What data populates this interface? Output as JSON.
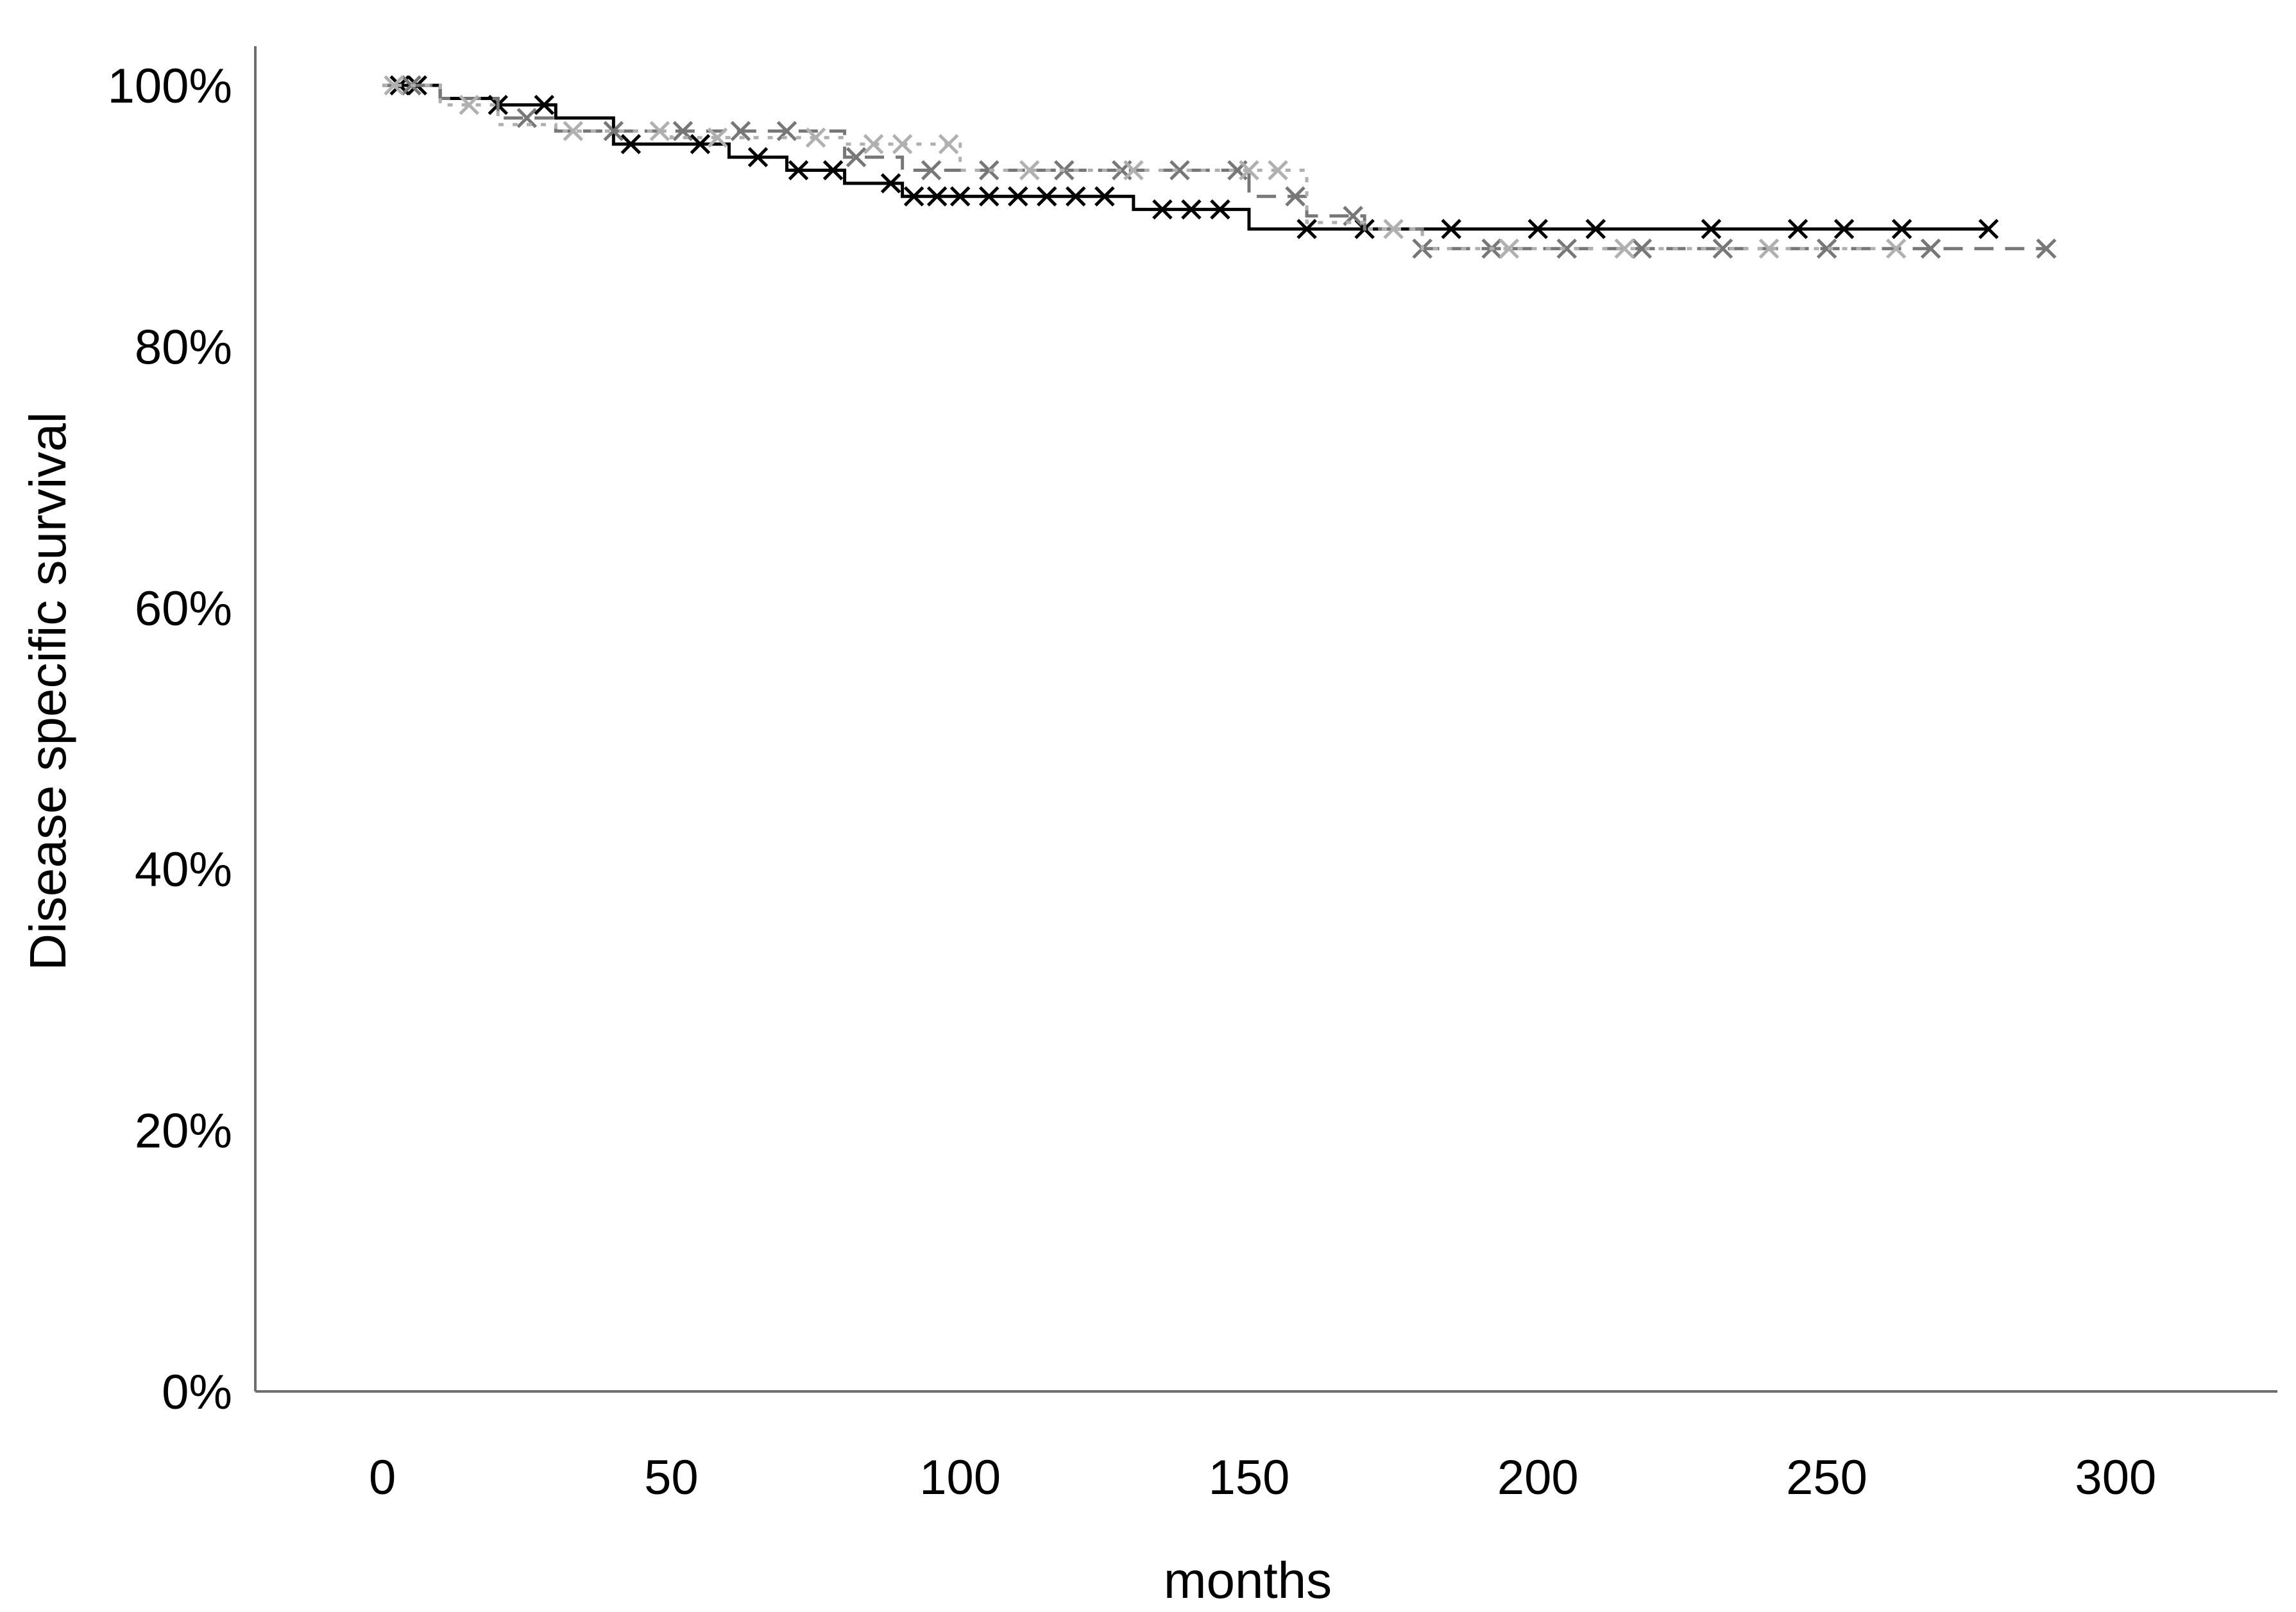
{
  "chart_data": {
    "type": "line",
    "title": "",
    "xlabel": "months",
    "ylabel": "Disease specific survival",
    "xlim": [
      -22,
      328
    ],
    "ylim": [
      0,
      1.03
    ],
    "x_ticks": [
      0,
      50,
      100,
      150,
      200,
      250,
      300
    ],
    "x_tick_labels": [
      "0",
      "50",
      "100",
      "150",
      "200",
      "250",
      "300"
    ],
    "y_ticks": [
      0,
      0.2,
      0.4,
      0.6,
      0.8,
      1.0
    ],
    "y_tick_labels": [
      "0%",
      "20%",
      "40%",
      "60%",
      "80%",
      "100%"
    ],
    "grid": false,
    "legend": "none",
    "series": [
      {
        "color": "#000000",
        "line_style": "solid",
        "x": [
          0,
          10,
          20,
          30,
          40,
          50,
          60,
          70,
          80,
          90,
          100,
          110,
          120,
          130,
          140,
          150,
          160,
          170,
          180,
          190,
          200,
          220,
          240,
          260,
          278
        ],
        "y": [
          1.0,
          0.99,
          0.985,
          0.975,
          0.955,
          0.955,
          0.945,
          0.935,
          0.925,
          0.915,
          0.915,
          0.915,
          0.915,
          0.905,
          0.905,
          0.89,
          0.89,
          0.89,
          0.89,
          0.89,
          0.89,
          0.89,
          0.89,
          0.89,
          0.89
        ],
        "censor_x": [
          3,
          6,
          20,
          28,
          43,
          55,
          65,
          72,
          78,
          88,
          92,
          96,
          100,
          105,
          110,
          115,
          120,
          125,
          135,
          140,
          145,
          160,
          170,
          185,
          200,
          210,
          230,
          245,
          253,
          263,
          278
        ]
      },
      {
        "color": "#777777",
        "line_style": "dashed",
        "x": [
          0,
          10,
          20,
          30,
          40,
          50,
          60,
          70,
          80,
          90,
          100,
          110,
          120,
          130,
          140,
          150,
          160,
          170,
          180,
          190,
          200,
          220,
          240,
          260,
          288
        ],
        "y": [
          1.0,
          0.99,
          0.975,
          0.965,
          0.965,
          0.965,
          0.965,
          0.965,
          0.945,
          0.935,
          0.935,
          0.935,
          0.935,
          0.935,
          0.935,
          0.915,
          0.9,
          0.89,
          0.875,
          0.875,
          0.875,
          0.875,
          0.875,
          0.875,
          0.875
        ],
        "censor_x": [
          5,
          25,
          40,
          52,
          62,
          70,
          82,
          95,
          105,
          118,
          128,
          138,
          148,
          158,
          168,
          180,
          192,
          205,
          218,
          232,
          250,
          268,
          288
        ]
      },
      {
        "color": "#b0b0b0",
        "line_style": "dotted",
        "x": [
          0,
          10,
          20,
          30,
          40,
          50,
          60,
          70,
          80,
          90,
          100,
          110,
          120,
          130,
          140,
          150,
          160,
          170,
          180,
          190,
          200,
          220,
          240,
          260
        ],
        "y": [
          1.0,
          0.985,
          0.97,
          0.965,
          0.965,
          0.96,
          0.96,
          0.96,
          0.955,
          0.955,
          0.935,
          0.935,
          0.935,
          0.935,
          0.935,
          0.935,
          0.895,
          0.89,
          0.875,
          0.875,
          0.875,
          0.875,
          0.875,
          0.875
        ],
        "censor_x": [
          2,
          15,
          33,
          48,
          58,
          75,
          85,
          90,
          98,
          112,
          130,
          150,
          155,
          175,
          195,
          215,
          240,
          262
        ]
      }
    ]
  }
}
